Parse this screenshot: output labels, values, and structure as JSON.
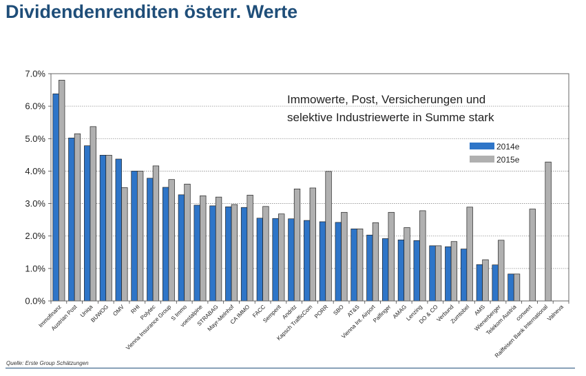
{
  "title": "Dividendenrenditen österr. Werte",
  "source": "Quelle: Erste Group Schätzungen",
  "chart_data": {
    "type": "bar",
    "annotation": [
      "Immowerte, Post, Versicherungen und",
      "selektive Industriewerte in Summe stark"
    ],
    "categories": [
      "Immofinanz",
      "Austrian Post",
      "Uniqa",
      "BUWOG",
      "OMV",
      "RHI",
      "Polytec",
      "Vienna Insurance Group",
      "S Immo",
      "voestalpine",
      "STRABAG",
      "Mayr-Melnhof",
      "CA IMMO",
      "FACC",
      "Semperit",
      "Andritz",
      "Kapsch TrafficCom",
      "PORR",
      "SBO",
      "AT&S",
      "Vienna Int. Airport",
      "Palfinger",
      "AMAG",
      "Lenzing",
      "DO & CO",
      "Verbund",
      "Zumtobel",
      "AMS",
      "Wienerberger",
      "Telekom Austria",
      "conwert",
      "Raiffeisen Bank International",
      "Valneva"
    ],
    "series": [
      {
        "name": "2014e",
        "color": "#2e75c8",
        "values": [
          6.38,
          5.02,
          4.78,
          4.49,
          4.37,
          4.0,
          3.78,
          3.5,
          3.27,
          2.95,
          2.93,
          2.9,
          2.88,
          2.55,
          2.54,
          2.53,
          2.48,
          2.44,
          2.42,
          2.22,
          2.03,
          1.92,
          1.88,
          1.86,
          1.7,
          1.67,
          1.6,
          1.12,
          1.11,
          0.83,
          0,
          0,
          0
        ]
      },
      {
        "name": "2015e",
        "color": "#b0b0b0",
        "values": [
          6.8,
          5.15,
          5.37,
          4.49,
          3.49,
          4.0,
          4.16,
          3.74,
          3.6,
          3.24,
          3.2,
          2.97,
          3.26,
          2.91,
          2.68,
          3.45,
          3.48,
          3.99,
          2.73,
          2.22,
          2.41,
          2.73,
          2.26,
          2.78,
          1.7,
          1.83,
          2.89,
          1.27,
          1.87,
          0.83,
          2.83,
          4.28,
          0
        ]
      }
    ],
    "yticks": [
      "0.0%",
      "1.0%",
      "2.0%",
      "3.0%",
      "4.0%",
      "5.0%",
      "6.0%",
      "7.0%"
    ],
    "ylim": [
      0,
      7
    ],
    "grid": true,
    "legend": "right"
  }
}
